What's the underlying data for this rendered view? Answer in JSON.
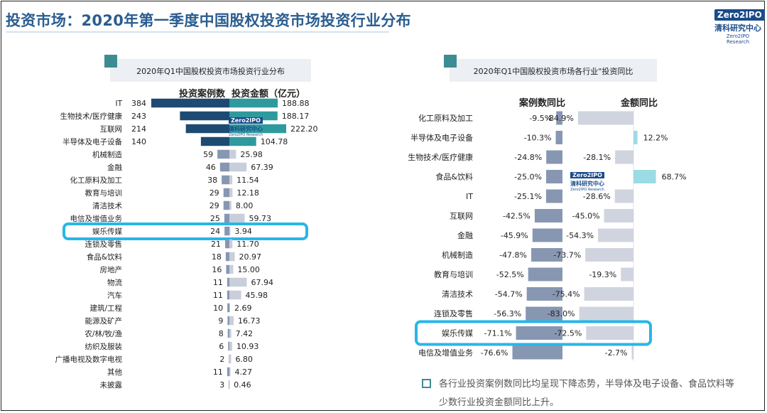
{
  "page": {
    "title": "投资市场：2020年第一季度中国股权投资市场投资行业分布",
    "brand": {
      "badge": "Zero2IPO",
      "cn": "清科研究中心",
      "en": "Zero2IPO Research"
    },
    "note": "各行业投资案例数同比均呈现下降态势，半导体及电子设备、食品饮料等少数行业投资金额同比上升。"
  },
  "colors": {
    "title": "#2a5d8f",
    "accent_square": "#3d8c94",
    "bar_dark_navy": "#1d4a73",
    "bar_dark_teal": "#2e9a9e",
    "bar_light_left": "#8797b2",
    "bar_light_right": "#c9cedb",
    "bar_yoy_count": "#8797b2",
    "bar_yoy_amount_neg": "#d0d4df",
    "bar_yoy_amount_pos": "#9bdbe3",
    "highlight_border": "#29b6e8"
  },
  "chart_data": [
    {
      "type": "bar",
      "title": "2020年Q1中国股权投资市场投资行业分布",
      "highlight": "娱乐传媒",
      "categories": [
        "IT",
        "生物技术/医疗健康",
        "互联网",
        "半导体及电子设备",
        "机械制造",
        "金融",
        "化工原料及加工",
        "教育与培训",
        "清洁技术",
        "电信及增值业务",
        "娱乐传媒",
        "连锁及零售",
        "食品&饮料",
        "房地产",
        "物流",
        "汽车",
        "建筑/工程",
        "能源及矿产",
        "农/林/牧/渔",
        "纺织及服装",
        "广播电视及数字电视",
        "其他",
        "未披露"
      ],
      "series": [
        {
          "name": "投资案例数",
          "values": [
            384,
            243,
            214,
            140,
            59,
            46,
            38,
            29,
            29,
            25,
            24,
            21,
            18,
            16,
            11,
            11,
            10,
            9,
            8,
            6,
            2,
            11,
            3
          ]
        },
        {
          "name": "投资金额（亿元）",
          "values": [
            188.88,
            188.17,
            222.2,
            104.78,
            25.98,
            67.39,
            11.54,
            12.18,
            8.0,
            59.73,
            3.94,
            11.7,
            20.97,
            15.0,
            67.94,
            45.98,
            2.69,
            16.73,
            7.42,
            10.93,
            6.8,
            4.27,
            0.46
          ]
        }
      ],
      "value_labels": {
        "count": [
          "384",
          "243",
          "214",
          "140",
          "59",
          "46",
          "38",
          "29",
          "29",
          "25",
          "24",
          "21",
          "18",
          "16",
          "11",
          "11",
          "10",
          "9",
          "8",
          "6",
          "2",
          "11",
          "3"
        ],
        "amount": [
          "188.88",
          "188.17",
          "222.20",
          "104.78",
          "25.98",
          "67.39",
          "11.54",
          "12.18",
          "8.00",
          "59.73",
          "3.94",
          "11.70",
          "20.97",
          "15.00",
          "67.94",
          "45.98",
          "2.69",
          "16.73",
          "7.42",
          "10.93",
          "6.80",
          "4.27",
          "0.46"
        ]
      }
    },
    {
      "type": "bar",
      "title": "2020年Q1中国股权投资市场各行业\"投资同比",
      "highlight": "娱乐传媒",
      "categories": [
        "化工原料及加工",
        "半导体及电子设备",
        "生物技术/医疗健康",
        "食品&饮料",
        "IT",
        "互联网",
        "金融",
        "机械制造",
        "教育与培训",
        "清洁技术",
        "连锁及零售",
        "娱乐传媒",
        "电信及增值业务"
      ],
      "series": [
        {
          "name": "案例数同比",
          "values": [
            -9.5,
            -10.3,
            -24.8,
            -25.0,
            -25.1,
            -42.5,
            -45.9,
            -47.8,
            -52.5,
            -54.7,
            -56.3,
            -71.1,
            -76.6
          ]
        },
        {
          "name": "金额同比",
          "values": [
            -84.9,
            12.2,
            -28.1,
            68.7,
            -28.6,
            -45.0,
            -54.3,
            -73.7,
            -19.3,
            -75.4,
            -83.0,
            -72.5,
            -2.7
          ]
        }
      ],
      "value_labels": {
        "count": [
          "-9.5%",
          "-10.3%",
          "-24.8%",
          "-25.0%",
          "-25.1%",
          "-42.5%",
          "-45.9%",
          "-47.8%",
          "-52.5%",
          "-54.7%",
          "-56.3%",
          "-71.1%",
          "-76.6%"
        ],
        "amount": [
          "-84.9%",
          "12.2%",
          "-28.1%",
          "68.7%",
          "-28.6%",
          "-45.0%",
          "-54.3%",
          "-73.7%",
          "-19.3%",
          "-75.4%",
          "-83.0%",
          "-72.5%",
          "-2.7%"
        ]
      }
    }
  ]
}
